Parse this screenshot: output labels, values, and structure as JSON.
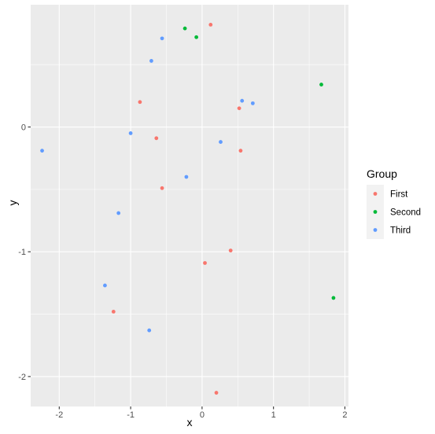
{
  "chart_data": {
    "type": "scatter",
    "xlabel": "x",
    "ylabel": "y",
    "xlim": [
      -2.4,
      2.05
    ],
    "ylim": [
      -2.24,
      0.98
    ],
    "x_ticks": [
      -2,
      -1,
      0,
      1,
      2
    ],
    "y_ticks": [
      -2,
      -1,
      0
    ],
    "grid": true,
    "legend": {
      "title": "Group",
      "placement": "right"
    },
    "series": [
      {
        "name": "First",
        "color": "#F8766D",
        "points": [
          {
            "x": 0.12,
            "y": 0.82
          },
          {
            "x": -0.87,
            "y": 0.2
          },
          {
            "x": 0.52,
            "y": 0.15
          },
          {
            "x": -0.64,
            "y": -0.09
          },
          {
            "x": 0.54,
            "y": -0.19
          },
          {
            "x": -0.56,
            "y": -0.49
          },
          {
            "x": 0.4,
            "y": -0.99
          },
          {
            "x": 0.04,
            "y": -1.09
          },
          {
            "x": -1.24,
            "y": -1.48
          },
          {
            "x": 0.2,
            "y": -2.13
          }
        ]
      },
      {
        "name": "Second",
        "color": "#00BA38",
        "points": [
          {
            "x": -0.24,
            "y": 0.79
          },
          {
            "x": -0.08,
            "y": 0.72
          },
          {
            "x": 1.67,
            "y": 0.34
          },
          {
            "x": 1.84,
            "y": -1.37
          }
        ]
      },
      {
        "name": "Third",
        "color": "#619CFF",
        "points": [
          {
            "x": -0.56,
            "y": 0.71
          },
          {
            "x": -0.71,
            "y": 0.53
          },
          {
            "x": 0.56,
            "y": 0.21
          },
          {
            "x": 0.71,
            "y": 0.19
          },
          {
            "x": -1.0,
            "y": -0.05
          },
          {
            "x": 0.26,
            "y": -0.12
          },
          {
            "x": -2.24,
            "y": -0.19
          },
          {
            "x": -0.22,
            "y": -0.4
          },
          {
            "x": -1.17,
            "y": -0.69
          },
          {
            "x": -1.36,
            "y": -1.27
          },
          {
            "x": -0.74,
            "y": -1.63
          }
        ]
      }
    ]
  },
  "style": {
    "panel_background": "#EBEBEB",
    "grid_color": "#FFFFFF"
  }
}
